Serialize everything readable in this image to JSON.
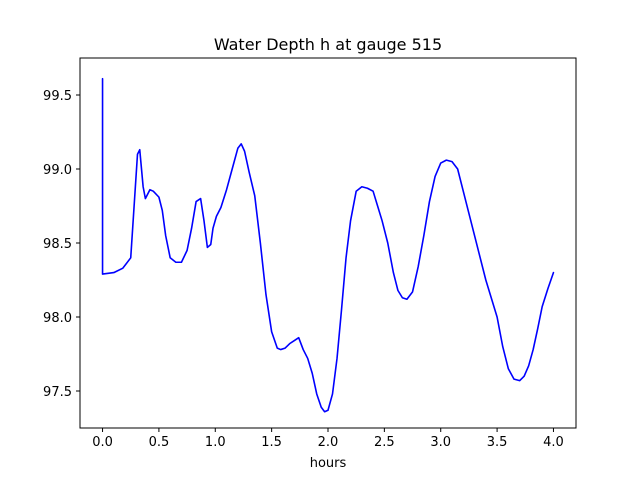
{
  "chart_data": {
    "type": "line",
    "title": "Water Depth h at gauge 515",
    "xlabel": "hours",
    "ylabel": "",
    "xlim": [
      -0.2,
      4.2
    ],
    "ylim": [
      97.25,
      99.75
    ],
    "xticks": [
      0.0,
      0.5,
      1.0,
      1.5,
      2.0,
      2.5,
      3.0,
      3.5,
      4.0
    ],
    "xtick_labels": [
      "0.0",
      "0.5",
      "1.0",
      "1.5",
      "2.0",
      "2.5",
      "3.0",
      "3.5",
      "4.0"
    ],
    "yticks": [
      97.5,
      98.0,
      98.5,
      99.0,
      99.5
    ],
    "ytick_labels": [
      "97.5",
      "98.0",
      "98.5",
      "99.0",
      "99.5"
    ],
    "grid": false,
    "legend": "none",
    "colors": {
      "line": "#0000ff",
      "axes": "#000000",
      "background": "#ffffff"
    },
    "series": [
      {
        "x": [
          0.0,
          0.0,
          0.0,
          0.1,
          0.18,
          0.25,
          0.28,
          0.31,
          0.33,
          0.36,
          0.38,
          0.42,
          0.45,
          0.5,
          0.53,
          0.56,
          0.6,
          0.65,
          0.7,
          0.75,
          0.79,
          0.83,
          0.87,
          0.9,
          0.93,
          0.96,
          0.98,
          1.01,
          1.05,
          1.1,
          1.15,
          1.2,
          1.23,
          1.26,
          1.3,
          1.35,
          1.4,
          1.45,
          1.5,
          1.55,
          1.58,
          1.62,
          1.66,
          1.7,
          1.74,
          1.78,
          1.82,
          1.86,
          1.9,
          1.94,
          1.97,
          2.0,
          2.04,
          2.08,
          2.12,
          2.16,
          2.2,
          2.25,
          2.3,
          2.35,
          2.4,
          2.44,
          2.48,
          2.53,
          2.58,
          2.62,
          2.66,
          2.7,
          2.75,
          2.8,
          2.85,
          2.9,
          2.95,
          3.0,
          3.05,
          3.1,
          3.15,
          3.2,
          3.3,
          3.4,
          3.5,
          3.55,
          3.6,
          3.65,
          3.7,
          3.74,
          3.78,
          3.82,
          3.86,
          3.9,
          3.95,
          4.0
        ],
        "y": [
          99.61,
          98.29,
          98.29,
          98.3,
          98.33,
          98.4,
          98.75,
          99.1,
          99.13,
          98.88,
          98.8,
          98.86,
          98.85,
          98.81,
          98.72,
          98.55,
          98.4,
          98.37,
          98.37,
          98.45,
          98.6,
          98.78,
          98.8,
          98.65,
          98.47,
          98.49,
          98.6,
          98.68,
          98.74,
          98.86,
          99.0,
          99.14,
          99.17,
          99.12,
          98.98,
          98.82,
          98.5,
          98.15,
          97.9,
          97.79,
          97.78,
          97.79,
          97.82,
          97.84,
          97.86,
          97.78,
          97.72,
          97.62,
          97.48,
          97.39,
          97.36,
          97.37,
          97.48,
          97.72,
          98.05,
          98.4,
          98.65,
          98.85,
          98.88,
          98.87,
          98.85,
          98.75,
          98.65,
          98.5,
          98.3,
          98.18,
          98.13,
          98.12,
          98.17,
          98.34,
          98.55,
          98.78,
          98.95,
          99.04,
          99.06,
          99.05,
          99.0,
          98.85,
          98.55,
          98.25,
          98.0,
          97.8,
          97.65,
          97.58,
          97.57,
          97.6,
          97.67,
          97.78,
          97.92,
          98.07,
          98.19,
          98.3
        ]
      }
    ]
  }
}
